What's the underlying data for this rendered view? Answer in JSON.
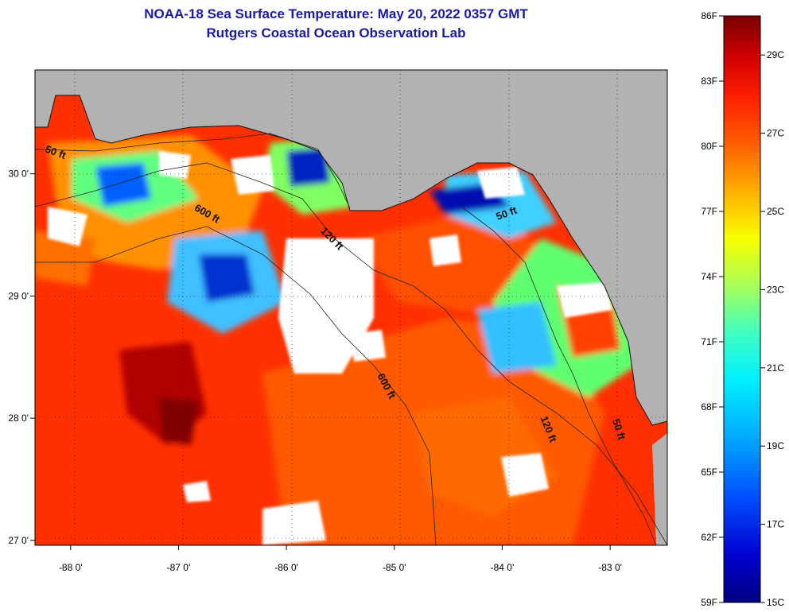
{
  "title": {
    "line1": "NOAA-18 Sea Surface Temperature:  May 20, 2022 0357 GMT",
    "line2": "Rutgers Coastal Ocean Observation Lab"
  },
  "map": {
    "lon_range": [
      -88.33,
      -82.47
    ],
    "lat_range": [
      26.96,
      30.85
    ],
    "land_color": "#b2b2b2",
    "cloud_color": "#ffffff",
    "lon_ticks": [
      {
        "value": -88,
        "label": "-88 0'"
      },
      {
        "value": -87,
        "label": "-87 0'"
      },
      {
        "value": -86,
        "label": "-86 0'"
      },
      {
        "value": -85,
        "label": "-85 0'"
      },
      {
        "value": -84,
        "label": "-84 0'"
      },
      {
        "value": -83,
        "label": "-83 0'"
      }
    ],
    "lat_ticks": [
      {
        "value": 30,
        "label": "30 0'"
      },
      {
        "value": 29,
        "label": "29 0'"
      },
      {
        "value": 28,
        "label": "28 0'"
      },
      {
        "value": 27,
        "label": "27 0'"
      }
    ],
    "isobath_labels": [
      {
        "text": "50 ft",
        "lon": -88.15,
        "lat": 30.15,
        "rot": 20
      },
      {
        "text": "600 ft",
        "lon": -86.75,
        "lat": 29.65,
        "rot": 30
      },
      {
        "text": "120 ft",
        "lon": -85.6,
        "lat": 29.45,
        "rot": 45
      },
      {
        "text": "50 ft",
        "lon": -83.95,
        "lat": 29.65,
        "rot": -20
      },
      {
        "text": "600 ft",
        "lon": -85.1,
        "lat": 28.25,
        "rot": 62
      },
      {
        "text": "120 ft",
        "lon": -83.6,
        "lat": 27.9,
        "rot": 68
      },
      {
        "text": "50 ft",
        "lon": -82.95,
        "lat": 27.9,
        "rot": 72
      }
    ]
  },
  "colorbar": {
    "colors": [
      "#000080",
      "#0000c8",
      "#0040ff",
      "#0090ff",
      "#00d8ff",
      "#40ffbf",
      "#a0ff60",
      "#f0ff00",
      "#ffc000",
      "#ff7000",
      "#ff2000",
      "#d00000",
      "#800000"
    ],
    "fahrenheit": [
      "86F",
      "83F",
      "80F",
      "77F",
      "74F",
      "71F",
      "68F",
      "65F",
      "62F",
      "59F"
    ],
    "celsius": [
      "29C",
      "27C",
      "25C",
      "23C",
      "21C",
      "19C",
      "17C",
      "15C"
    ]
  }
}
